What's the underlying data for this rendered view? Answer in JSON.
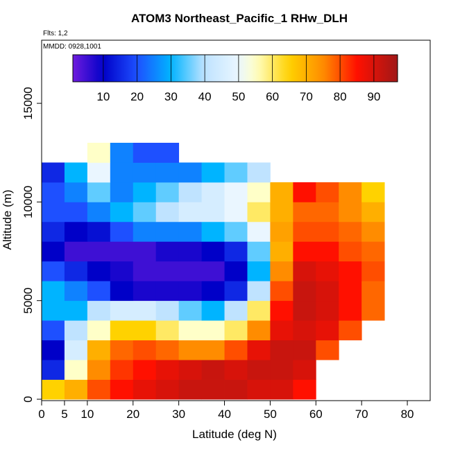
{
  "chart_data": {
    "type": "heatmap",
    "title": "ATOM3 Northeast_Pacific_1 RHw_DLH",
    "subtitles": [
      "Flts: 1,2",
      "MMDD: 0928,1001"
    ],
    "x_label": "Latitude (deg N)",
    "y_label": "Altitude (m)",
    "xlim": [
      0,
      85
    ],
    "ylim": [
      0,
      18200
    ],
    "xticks": [
      0,
      5,
      10,
      20,
      30,
      40,
      50,
      60,
      70,
      80
    ],
    "yticks": [
      0,
      5000,
      10000,
      15000
    ],
    "x_bins": [
      0,
      5,
      10,
      15,
      20,
      25,
      30,
      35,
      40,
      45,
      50,
      55,
      60,
      65,
      70,
      75
    ],
    "y_bins": [
      0,
      1000,
      2000,
      3000,
      4000,
      5000,
      6000,
      7000,
      8000,
      9000,
      10000,
      11000,
      12000,
      13000
    ],
    "z": [
      [
        65,
        70,
        80,
        85,
        88,
        90,
        92,
        92,
        92,
        90,
        90,
        85,
        null,
        null,
        null
      ],
      [
        15,
        55,
        75,
        82,
        85,
        88,
        90,
        92,
        90,
        92,
        92,
        90,
        null,
        null,
        null
      ],
      [
        10,
        45,
        70,
        78,
        80,
        78,
        75,
        75,
        80,
        88,
        92,
        92,
        80,
        null,
        null
      ],
      [
        20,
        40,
        55,
        65,
        65,
        60,
        55,
        55,
        60,
        75,
        88,
        90,
        88,
        80,
        null
      ],
      [
        30,
        30,
        40,
        45,
        45,
        40,
        35,
        30,
        40,
        60,
        85,
        92,
        90,
        85,
        78
      ],
      [
        30,
        25,
        20,
        10,
        8,
        8,
        8,
        10,
        15,
        40,
        80,
        92,
        90,
        85,
        78
      ],
      [
        20,
        15,
        10,
        8,
        5,
        5,
        5,
        5,
        10,
        30,
        75,
        90,
        88,
        85,
        80
      ],
      [
        10,
        5,
        5,
        5,
        5,
        8,
        8,
        10,
        15,
        35,
        70,
        85,
        85,
        80,
        78
      ],
      [
        15,
        10,
        12,
        20,
        25,
        25,
        25,
        30,
        35,
        50,
        72,
        80,
        80,
        78,
        75
      ],
      [
        20,
        20,
        25,
        30,
        35,
        40,
        45,
        45,
        50,
        60,
        70,
        78,
        78,
        75,
        70
      ],
      [
        20,
        25,
        35,
        25,
        30,
        35,
        40,
        45,
        50,
        55,
        70,
        85,
        80,
        75,
        65
      ],
      [
        15,
        30,
        50,
        25,
        25,
        25,
        25,
        30,
        35,
        40,
        null,
        null,
        null,
        null,
        null
      ],
      [
        null,
        null,
        55,
        25,
        20,
        20,
        null,
        null,
        null,
        null,
        null,
        null,
        null,
        null,
        null
      ]
    ],
    "colorscale": [
      [
        0,
        "#7b1fe0"
      ],
      [
        10,
        "#0000c8"
      ],
      [
        20,
        "#1e50ff"
      ],
      [
        30,
        "#00b4ff"
      ],
      [
        40,
        "#bfe3ff"
      ],
      [
        50,
        "#eaf6ff"
      ],
      [
        55,
        "#ffffc8"
      ],
      [
        65,
        "#ffd200"
      ],
      [
        75,
        "#ff8c00"
      ],
      [
        85,
        "#ff1000"
      ],
      [
        97,
        "#a01818"
      ]
    ],
    "colorbar_lim": [
      1,
      97
    ],
    "colorbar_ticks": [
      10,
      20,
      30,
      40,
      50,
      60,
      70,
      80,
      90
    ]
  }
}
